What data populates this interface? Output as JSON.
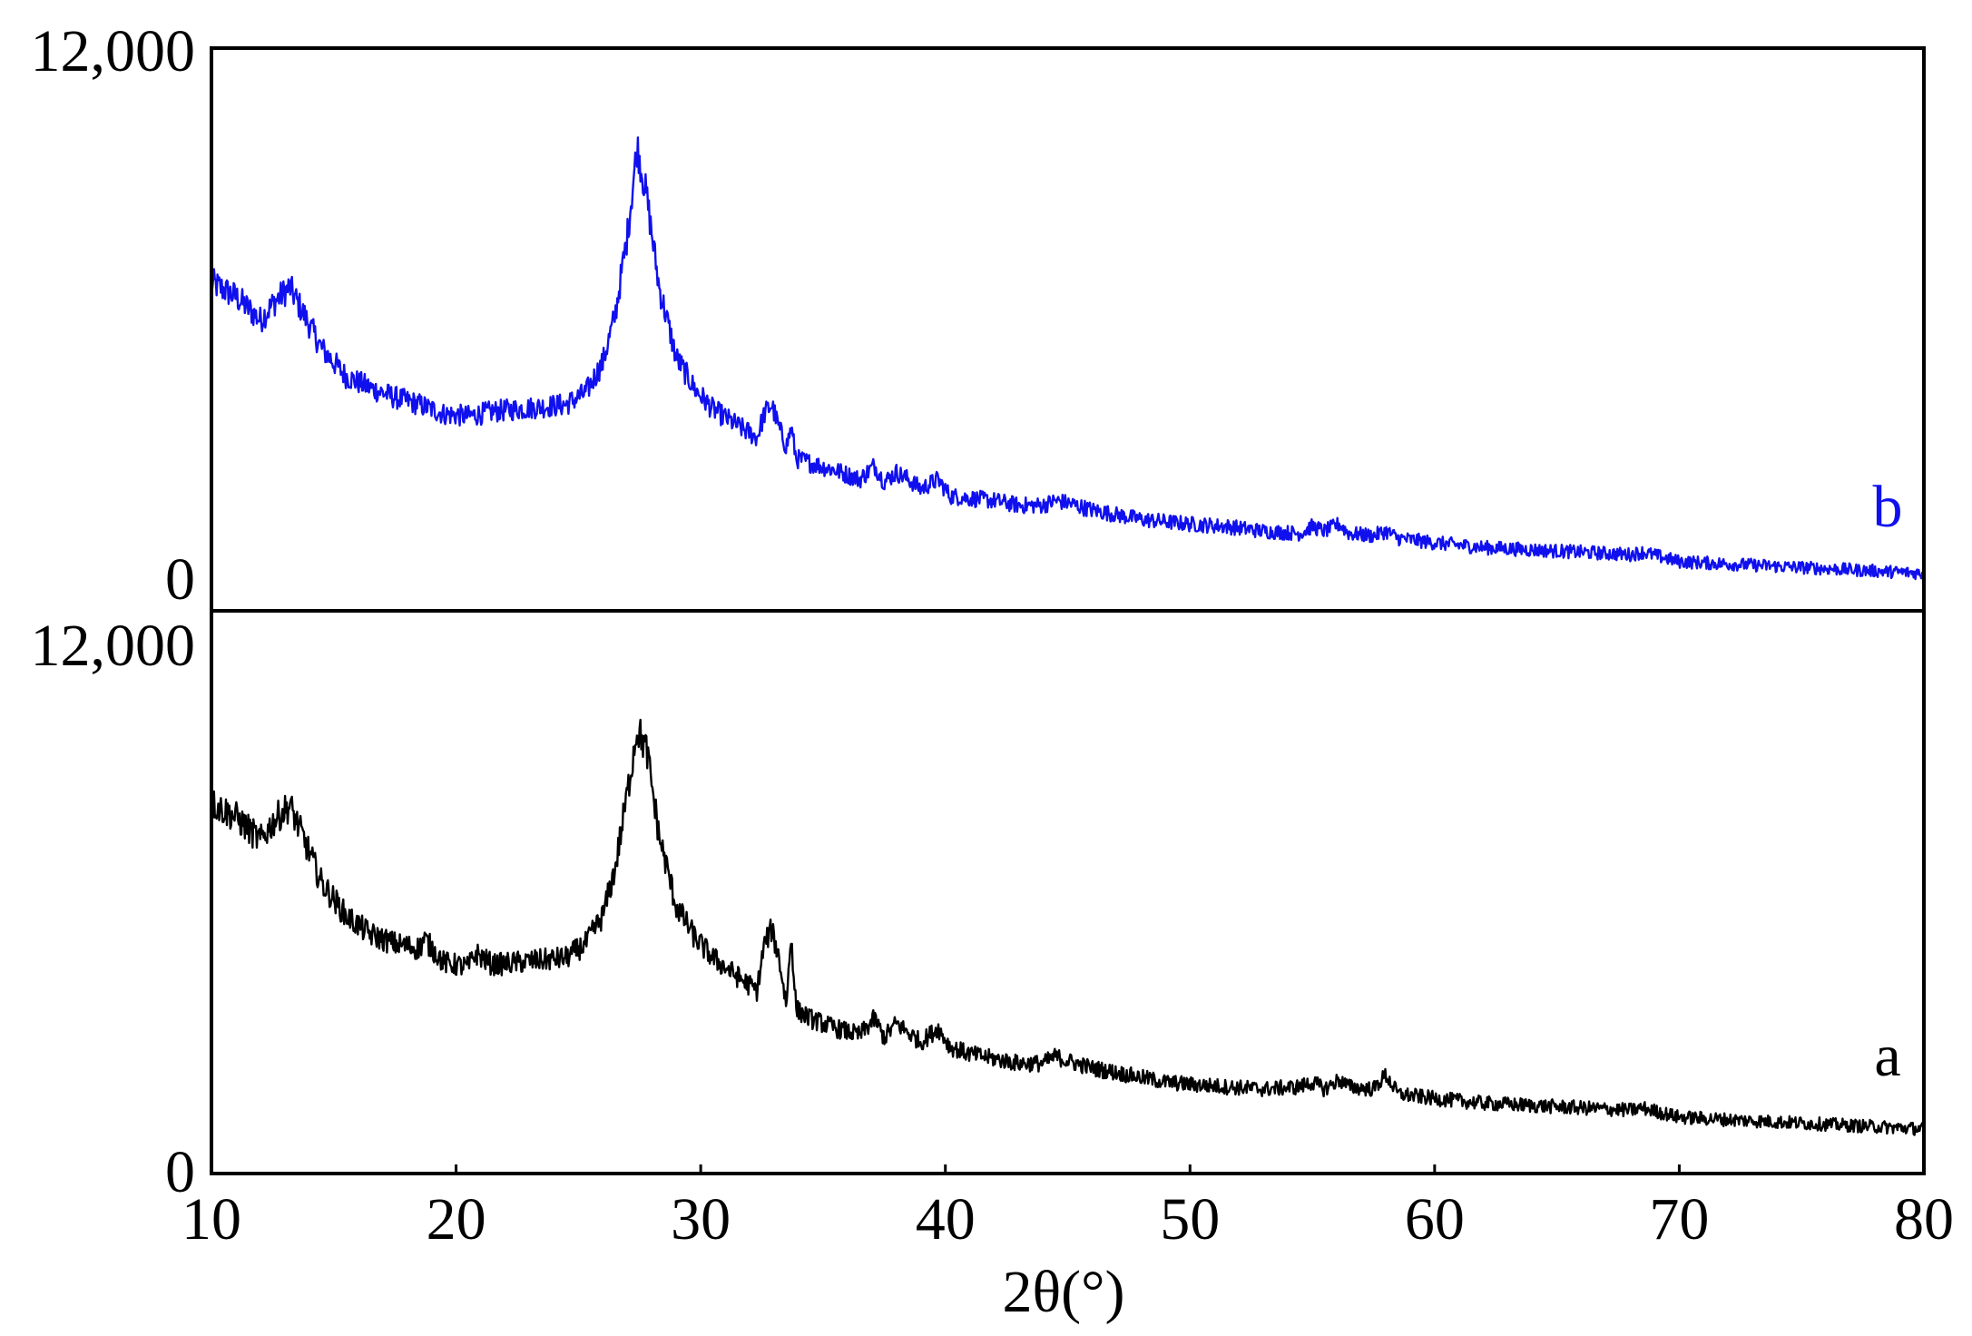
{
  "chart_data": {
    "type": "line",
    "xlabel": "2θ(°)",
    "xlim": [
      10,
      80
    ],
    "x_ticks": [
      "10",
      "20",
      "30",
      "40",
      "50",
      "60",
      "70",
      "80"
    ],
    "panels": [
      {
        "id": "top",
        "ylim": [
          0,
          12000
        ],
        "y_tick_labels": [
          "0",
          "12,000"
        ],
        "series": [
          {
            "name": "b",
            "color": "#1010ee",
            "points": [
              [
                10,
                7000
              ],
              [
                11,
                6700
              ],
              [
                12,
                6200
              ],
              [
                12.6,
                6600
              ],
              [
                13.2,
                6900
              ],
              [
                13.8,
                6300
              ],
              [
                14.5,
                5600
              ],
              [
                15.5,
                5000
              ],
              [
                16.5,
                4750
              ],
              [
                17.5,
                4550
              ],
              [
                18.5,
                4400
              ],
              [
                19.5,
                4200
              ],
              [
                20.5,
                4150
              ],
              [
                21.5,
                4250
              ],
              [
                22.5,
                4300
              ],
              [
                23.5,
                4350
              ],
              [
                24.5,
                4400
              ],
              [
                25.3,
                4650
              ],
              [
                26,
                5300
              ],
              [
                26.5,
                6300
              ],
              [
                27,
                8000
              ],
              [
                27.4,
                9900
              ],
              [
                27.8,
                8800
              ],
              [
                28.3,
                6900
              ],
              [
                29,
                5400
              ],
              [
                29.8,
                4700
              ],
              [
                30.5,
                4300
              ],
              [
                31.5,
                3950
              ],
              [
                32.3,
                3700
              ],
              [
                32.6,
                4200
              ],
              [
                32.9,
                4400
              ],
              [
                33.2,
                3900
              ],
              [
                33.5,
                3500
              ],
              [
                33.7,
                3900
              ],
              [
                33.9,
                3250
              ],
              [
                34.5,
                3150
              ],
              [
                35.5,
                3000
              ],
              [
                36.5,
                2800
              ],
              [
                37.1,
                3100
              ],
              [
                37.5,
                2750
              ],
              [
                38,
                2950
              ],
              [
                38.5,
                2800
              ],
              [
                39,
                2600
              ],
              [
                39.7,
                2800
              ],
              [
                40.2,
                2450
              ],
              [
                41,
                2400
              ],
              [
                42,
                2350
              ],
              [
                43,
                2250
              ],
              [
                44,
                2250
              ],
              [
                44.5,
                2350
              ],
              [
                45,
                2300
              ],
              [
                46,
                2150
              ],
              [
                47,
                2050
              ],
              [
                48,
                1950
              ],
              [
                49,
                1900
              ],
              [
                50,
                1850
              ],
              [
                51.5,
                1800
              ],
              [
                53,
                1700
              ],
              [
                54.5,
                1650
              ],
              [
                55,
                1800
              ],
              [
                55.5,
                1700
              ],
              [
                56.1,
                1850
              ],
              [
                56.5,
                1650
              ],
              [
                57.5,
                1600
              ],
              [
                58,
                1700
              ],
              [
                58.5,
                1550
              ],
              [
                60,
                1450
              ],
              [
                62,
                1350
              ],
              [
                64,
                1300
              ],
              [
                66,
                1250
              ],
              [
                68,
                1200
              ],
              [
                68.5,
                1250
              ],
              [
                70,
                1050
              ],
              [
                72,
                1000
              ],
              [
                74,
                950
              ],
              [
                76,
                900
              ],
              [
                78,
                850
              ],
              [
                80,
                800
              ]
            ]
          }
        ]
      },
      {
        "id": "bottom",
        "ylim": [
          0,
          12000
        ],
        "y_tick_labels": [
          "0",
          "12,000"
        ],
        "series": [
          {
            "name": "a",
            "color": "#000000",
            "points": [
              [
                10,
                7900
              ],
              [
                11,
                7600
              ],
              [
                12,
                7100
              ],
              [
                12.6,
                7550
              ],
              [
                13.2,
                7850
              ],
              [
                13.8,
                7100
              ],
              [
                14.5,
                6200
              ],
              [
                15.5,
                5500
              ],
              [
                16.5,
                5100
              ],
              [
                17.5,
                4900
              ],
              [
                18.5,
                4800
              ],
              [
                18.7,
                5000
              ],
              [
                19.5,
                4500
              ],
              [
                20.5,
                4400
              ],
              [
                20.8,
                4700
              ],
              [
                21.5,
                4450
              ],
              [
                22.5,
                4500
              ],
              [
                23.5,
                4550
              ],
              [
                24.5,
                4600
              ],
              [
                25.3,
                4900
              ],
              [
                26,
                5500
              ],
              [
                26.5,
                6500
              ],
              [
                27,
                8100
              ],
              [
                27.4,
                9500
              ],
              [
                27.8,
                9000
              ],
              [
                28.3,
                7200
              ],
              [
                29,
                5700
              ],
              [
                29.8,
                5000
              ],
              [
                30.5,
                4600
              ],
              [
                31.5,
                4200
              ],
              [
                32.3,
                3900
              ],
              [
                32.6,
                4900
              ],
              [
                32.9,
                5200
              ],
              [
                33.2,
                4600
              ],
              [
                33.5,
                3600
              ],
              [
                33.7,
                5100
              ],
              [
                33.9,
                3500
              ],
              [
                34.5,
                3300
              ],
              [
                35.5,
                3100
              ],
              [
                36.5,
                2950
              ],
              [
                37.1,
                3300
              ],
              [
                37.5,
                2900
              ],
              [
                38,
                3200
              ],
              [
                38.5,
                3000
              ],
              [
                39,
                2800
              ],
              [
                39.7,
                3100
              ],
              [
                40.2,
                2700
              ],
              [
                41,
                2550
              ],
              [
                42,
                2450
              ],
              [
                43,
                2350
              ],
              [
                44,
                2350
              ],
              [
                44.5,
                2500
              ],
              [
                45,
                2400
              ],
              [
                46,
                2250
              ],
              [
                47,
                2150
              ],
              [
                48,
                2050
              ],
              [
                49,
                1950
              ],
              [
                50,
                1900
              ],
              [
                51.5,
                1850
              ],
              [
                53,
                1800
              ],
              [
                54.5,
                1850
              ],
              [
                55,
                1950
              ],
              [
                55.5,
                1800
              ],
              [
                56.1,
                2000
              ],
              [
                56.5,
                1850
              ],
              [
                57.5,
                1800
              ],
              [
                58,
                2100
              ],
              [
                58.5,
                1700
              ],
              [
                60,
                1600
              ],
              [
                62,
                1500
              ],
              [
                64,
                1450
              ],
              [
                66,
                1400
              ],
              [
                68,
                1350
              ],
              [
                68.5,
                1400
              ],
              [
                70,
                1200
              ],
              [
                72,
                1150
              ],
              [
                74,
                1100
              ],
              [
                76,
                1050
              ],
              [
                78,
                1000
              ],
              [
                80,
                950
              ]
            ]
          }
        ]
      }
    ]
  }
}
